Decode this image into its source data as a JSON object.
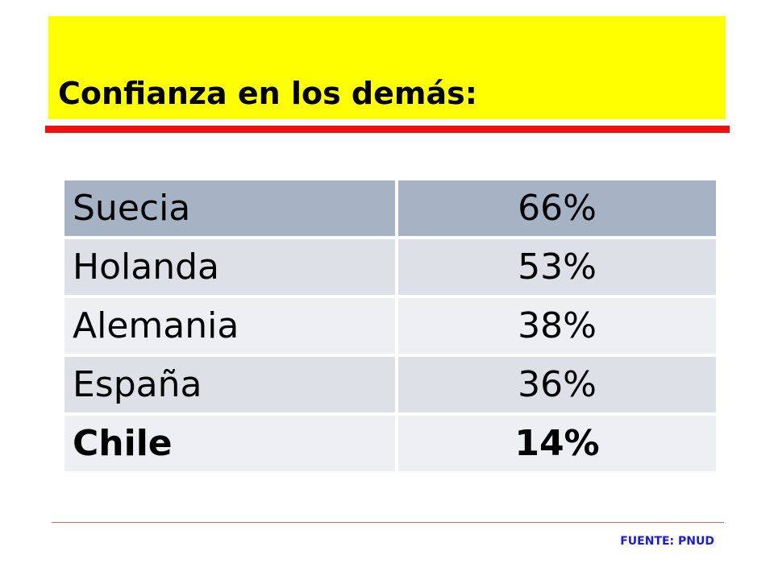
{
  "slide": {
    "title": "Confianza en los demás:",
    "source": "FUENTE: PNUD"
  },
  "table": {
    "rows": [
      {
        "country": "Suecia",
        "value": "66%"
      },
      {
        "country": "Holanda",
        "value": "53%"
      },
      {
        "country": "Alemania",
        "value": "38%"
      },
      {
        "country": "España",
        "value": "36%"
      },
      {
        "country": "Chile",
        "value": "14%"
      }
    ]
  },
  "colors": {
    "title_background": "#ffff00",
    "title_underline": "#f01010",
    "header_row": "#a5b3c5",
    "row_dark": "#dde0e6",
    "row_light": "#eeeff2",
    "source_text": "#1a1ae0"
  }
}
